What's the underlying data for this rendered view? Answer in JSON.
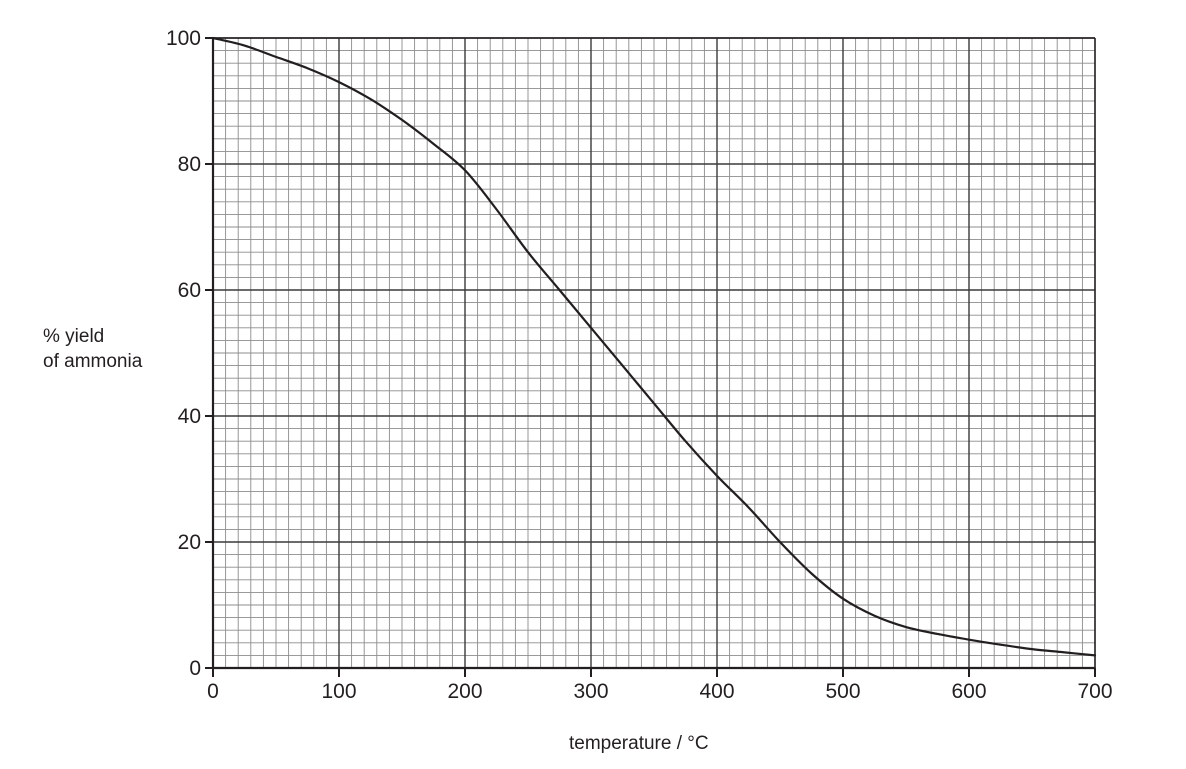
{
  "chart_data": {
    "type": "line",
    "title": "",
    "xlabel": "temperature / °C",
    "ylabel": [
      "% yield",
      "of ammonia"
    ],
    "xlim": [
      0,
      700
    ],
    "ylim": [
      0,
      100
    ],
    "x_ticks": [
      0,
      100,
      200,
      300,
      400,
      500,
      600,
      700
    ],
    "y_ticks": [
      0,
      20,
      40,
      60,
      80,
      100
    ],
    "grid": {
      "on": true,
      "major_x_step": 100,
      "minor_x_step": 10,
      "major_y_step": 20,
      "minor_y_step": 2
    },
    "legend": null,
    "series": [
      {
        "name": "% yield of ammonia",
        "x": [
          0,
          25,
          50,
          75,
          100,
          125,
          150,
          175,
          200,
          225,
          250,
          275,
          300,
          325,
          350,
          375,
          400,
          425,
          450,
          475,
          500,
          525,
          550,
          575,
          600,
          625,
          650,
          675,
          700
        ],
        "values": [
          100,
          98.8,
          97,
          95.2,
          93,
          90.3,
          87,
          83.2,
          79,
          72.8,
          66,
          60,
          54,
          48,
          42,
          36,
          30.5,
          25.5,
          20,
          15,
          11,
          8.3,
          6.5,
          5.4,
          4.5,
          3.7,
          3,
          2.5,
          2
        ],
        "color": "#231f20"
      }
    ]
  },
  "colors": {
    "axis": "#231f20",
    "major_grid": "#3a3a3a",
    "minor_grid": "#8c8c8c",
    "curve": "#231f20"
  }
}
